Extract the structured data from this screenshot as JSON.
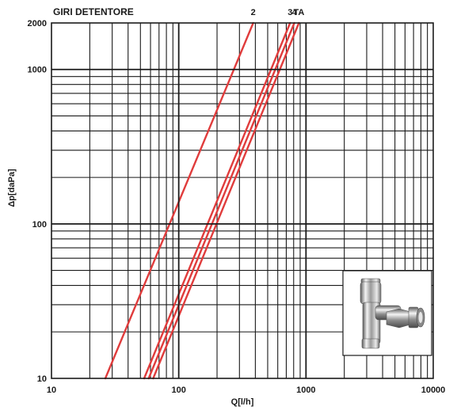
{
  "header": {
    "title": "GIRI DETENTORE"
  },
  "chart_data": {
    "type": "line",
    "title": "GIRI DETENTORE",
    "xlabel": "Q[l/h]",
    "ylabel": "Δp[daPa]",
    "xscale": "log",
    "yscale": "log",
    "xlim": [
      10,
      10000
    ],
    "ylim": [
      10,
      2000
    ],
    "grid": true,
    "legend": "none",
    "x_tick_labels": [
      {
        "value": 10,
        "label": "10"
      },
      {
        "value": 100,
        "label": "100"
      },
      {
        "value": 1000,
        "label": "1000"
      },
      {
        "value": 10000,
        "label": "10000"
      }
    ],
    "y_tick_labels": [
      {
        "value": 10,
        "label": "10"
      },
      {
        "value": 100,
        "label": "100"
      },
      {
        "value": 1000,
        "label": "1000"
      },
      {
        "value": 2000,
        "label": "2000"
      }
    ],
    "line_color": "#e03c3c",
    "grid_color": "#1a1a1a",
    "series": [
      {
        "name": "2",
        "x": [
          26.5,
          385
        ],
        "y": [
          10,
          2000
        ]
      },
      {
        "name": "3",
        "x": [
          53.5,
          750
        ],
        "y": [
          10,
          2000
        ]
      },
      {
        "name": "4",
        "x": [
          58,
          810
        ],
        "y": [
          10,
          2000
        ]
      },
      {
        "name": "TA",
        "x": [
          63,
          880
        ],
        "y": [
          10,
          2000
        ]
      }
    ]
  },
  "inset": {
    "image_icon": "radiator-lockshield-valve-photo"
  }
}
